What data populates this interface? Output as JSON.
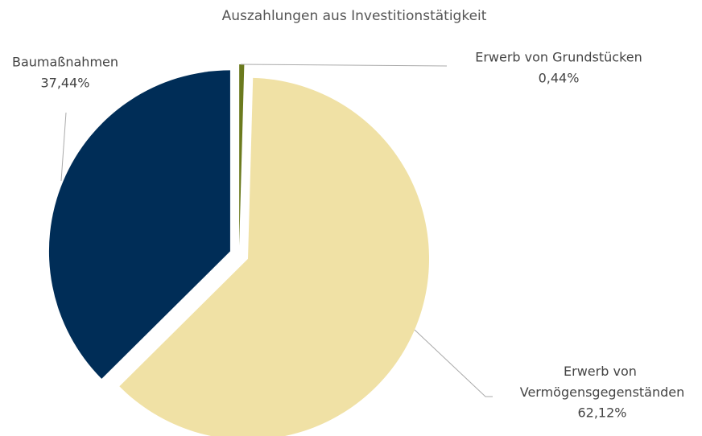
{
  "chart_data": {
    "type": "pie",
    "title": "Auszahlungen aus Investitionstätigkeit",
    "categories": [
      "Erwerb von Grundstücken",
      "Erwerb von Vermögensgegenständen",
      "Baumaßnahmen"
    ],
    "values": [
      0.44,
      62.12,
      37.44
    ],
    "value_labels": [
      "0,44%",
      "62,12%",
      "37,44%"
    ],
    "colors": [
      "#6b7a1e",
      "#f0e1a5",
      "#002d57"
    ]
  }
}
